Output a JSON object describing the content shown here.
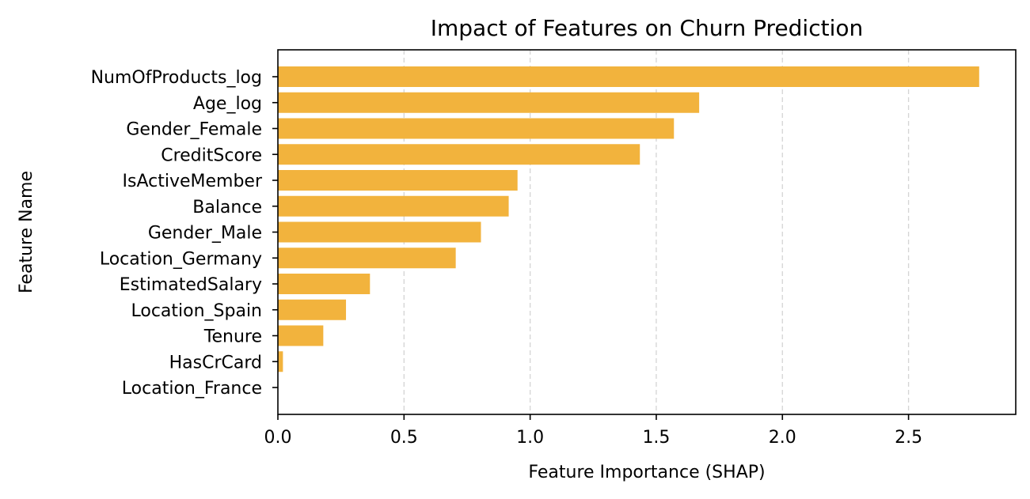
{
  "chart_data": {
    "type": "bar",
    "orientation": "horizontal",
    "title": "Impact of Features on Churn Prediction",
    "xlabel": "Feature Importance (SHAP)",
    "ylabel": "Feature Name",
    "categories": [
      "NumOfProducts_log",
      "Age_log",
      "Gender_Female",
      "CreditScore",
      "IsActiveMember",
      "Balance",
      "Gender_Male",
      "Location_Germany",
      "EstimatedSalary",
      "Location_Spain",
      "Tenure",
      "HasCrCard",
      "Location_France"
    ],
    "values": [
      2.78,
      1.67,
      1.57,
      1.435,
      0.95,
      0.915,
      0.805,
      0.705,
      0.365,
      0.27,
      0.18,
      0.02,
      0.0
    ],
    "xlim": [
      0,
      2.925
    ],
    "xticks": [
      0.0,
      0.5,
      1.0,
      1.5,
      2.0,
      2.5
    ],
    "xtick_labels": [
      "0.0",
      "0.5",
      "1.0",
      "1.5",
      "2.0",
      "2.5"
    ],
    "grid": "x-axis dashed",
    "bar_color": "#f2b33d",
    "grid_color": "#d4d4d4"
  }
}
